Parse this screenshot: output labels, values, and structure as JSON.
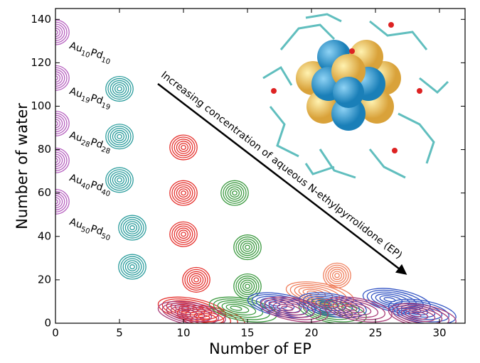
{
  "chart_data": {
    "type": "contour",
    "xlabel": "Number of EP",
    "ylabel": "Number of water",
    "xlim": [
      0,
      32
    ],
    "ylim": [
      0,
      145
    ],
    "xticks": [
      0,
      5,
      10,
      15,
      20,
      25,
      30
    ],
    "yticks": [
      0,
      20,
      40,
      60,
      80,
      100,
      120,
      140
    ],
    "series": [
      {
        "color": "#b660bf",
        "x": [
          0,
          0,
          0,
          0,
          0
        ],
        "values": [
          134,
          113,
          92,
          75,
          56
        ]
      },
      {
        "color": "#2a9c9c",
        "x": [
          5,
          5,
          5,
          6,
          6
        ],
        "values": [
          108,
          86,
          66,
          44,
          26
        ]
      },
      {
        "color": "#e5322e",
        "x": [
          10,
          10,
          10,
          11,
          10,
          11.5
        ],
        "values": [
          81,
          60,
          41,
          20,
          7,
          3
        ]
      },
      {
        "color": "#3c9a40",
        "x": [
          14,
          15,
          15,
          14,
          21
        ],
        "values": [
          60,
          35,
          17,
          7,
          6
        ]
      },
      {
        "color": "#f0805e",
        "x": [
          22,
          20
        ],
        "values": [
          22,
          14
        ]
      },
      {
        "color": "#3455c4",
        "x": [
          17,
          21,
          26,
          28
        ],
        "values": [
          9,
          9,
          11,
          6
        ]
      },
      {
        "color": "#a83c78",
        "x": [
          10,
          18,
          23,
          28
        ],
        "values": [
          5,
          7,
          7,
          4
        ]
      }
    ],
    "labels": [
      [
        "Au",
        "10",
        "Pd",
        "10"
      ],
      [
        "Au",
        "19",
        "Pd",
        "19"
      ],
      [
        "Au",
        "28",
        "Pd",
        "28"
      ],
      [
        "Au",
        "40",
        "Pd",
        "40"
      ],
      [
        "Au",
        "50",
        "Pd",
        "50"
      ]
    ],
    "arrow_text": "Increasing concentration of aqueous N-ethylpyrrolidone (EP)"
  }
}
